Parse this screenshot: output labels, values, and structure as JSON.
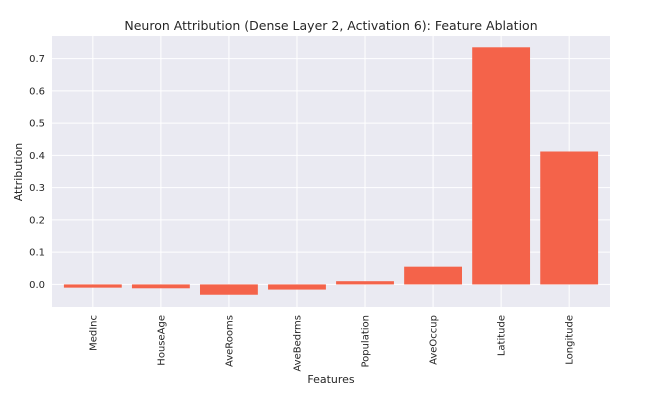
{
  "chart_data": {
    "type": "bar",
    "title": "Neuron Attribution (Dense Layer 2, Activation 6): Feature Ablation",
    "xlabel": "Features",
    "ylabel": "Attribution",
    "categories": [
      "MedInc",
      "HouseAge",
      "AveRooms",
      "AveBedrms",
      "Population",
      "AveOccup",
      "Latitude",
      "Longitude"
    ],
    "values": [
      -0.01,
      -0.012,
      -0.032,
      -0.016,
      0.01,
      0.055,
      0.735,
      0.412
    ],
    "ylim": [
      -0.07,
      0.77
    ],
    "yticks": [
      0.0,
      0.1,
      0.2,
      0.3,
      0.4,
      0.5,
      0.6,
      0.7
    ],
    "ytick_labels": [
      "0.0",
      "0.1",
      "0.2",
      "0.3",
      "0.4",
      "0.5",
      "0.6",
      "0.7"
    ],
    "bar_color": "#f4634a",
    "background_color": "#eaeaf2",
    "grid_color": "#ffffff",
    "grid": true,
    "legend": "none"
  }
}
